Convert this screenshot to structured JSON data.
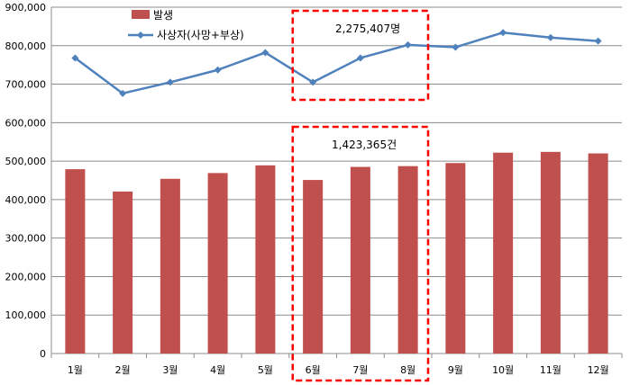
{
  "chart_data": {
    "type": "bar",
    "categories": [
      "1월",
      "2월",
      "3월",
      "4월",
      "5월",
      "6월",
      "7월",
      "8월",
      "9월",
      "10월",
      "11월",
      "12월"
    ],
    "series": [
      {
        "name": "발생",
        "type": "bar",
        "color": "#c0504d",
        "values": [
          479000,
          421000,
          454000,
          469000,
          489000,
          451000,
          485000,
          487000,
          495000,
          522000,
          524000,
          520000
        ]
      },
      {
        "name": "사상자(사망+부상)",
        "type": "line",
        "color": "#4f81bd",
        "values": [
          768000,
          676000,
          705000,
          737000,
          782000,
          705000,
          768000,
          802000,
          796000,
          834000,
          821000,
          812000
        ]
      }
    ],
    "y_ticks": [
      "0",
      "100,000",
      "200,000",
      "300,000",
      "400,000",
      "500,000",
      "600,000",
      "700,000",
      "800,000",
      "900,000"
    ],
    "ylim": [
      0,
      900000
    ],
    "grid": true,
    "legend_position": "top-left",
    "highlight_categories": [
      "6월",
      "7월",
      "8월"
    ],
    "highlight_color": "#ff0000",
    "annotations": {
      "line_total": "2,275,407명",
      "bar_total": "1,423,365건"
    }
  }
}
